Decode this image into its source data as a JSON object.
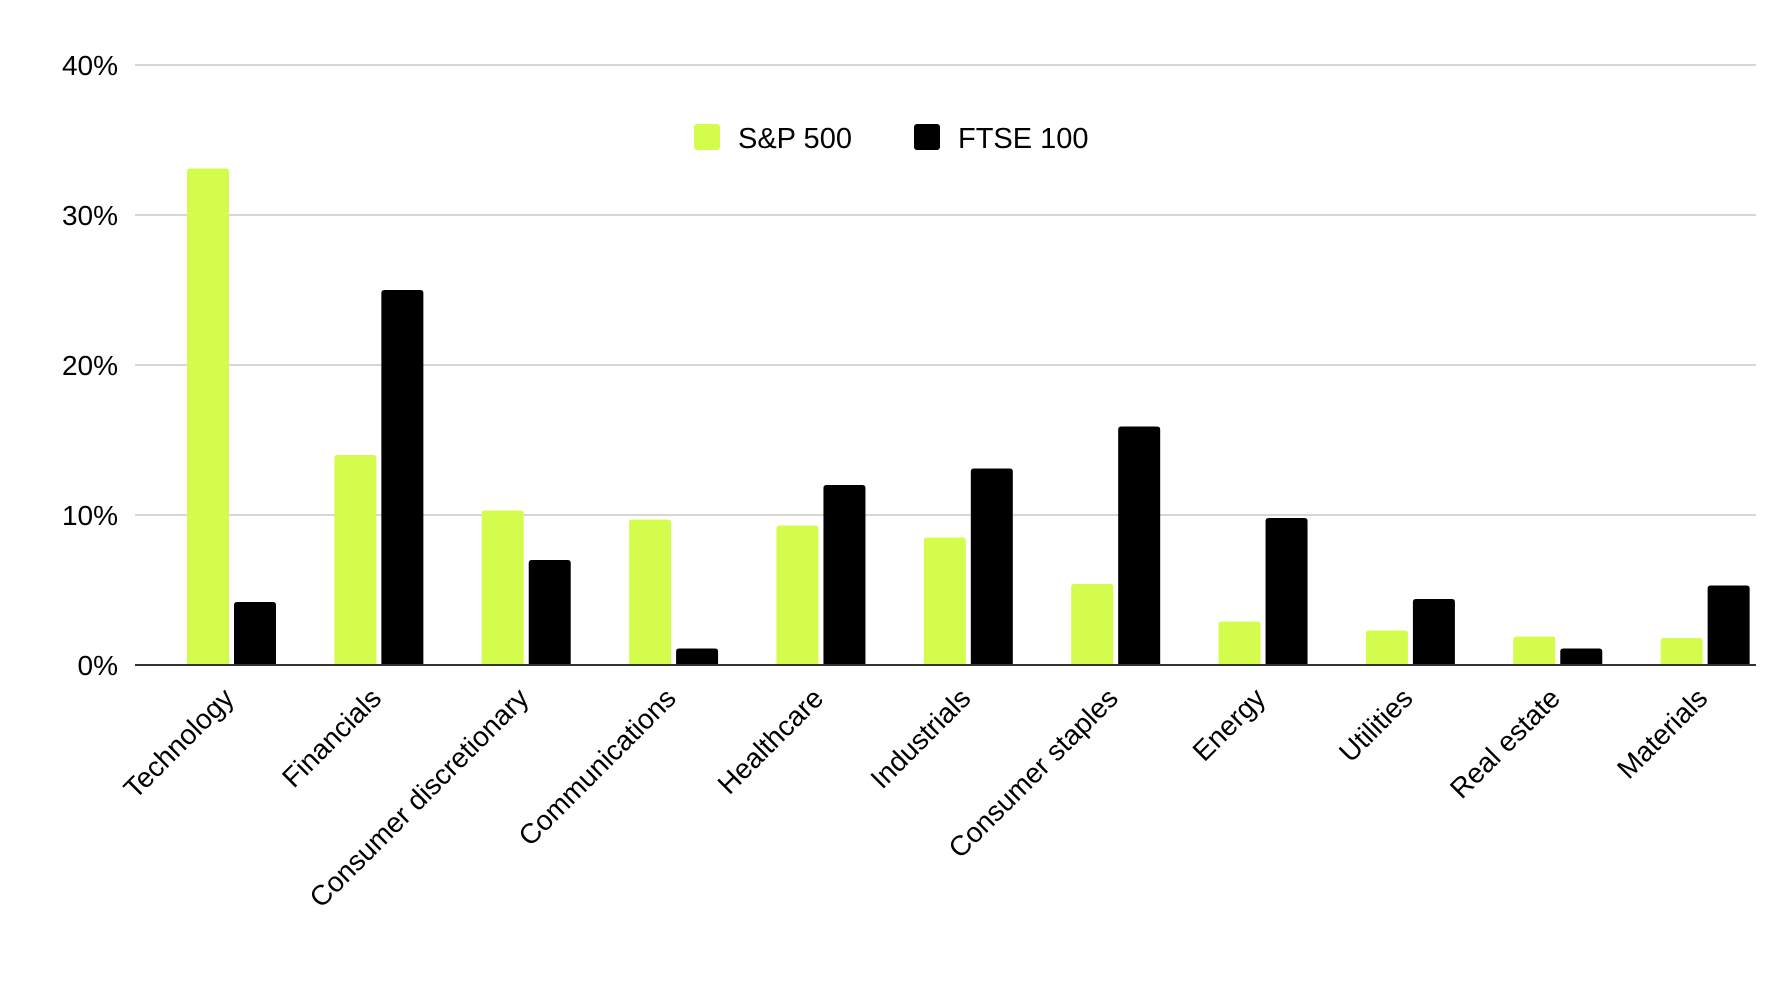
{
  "chart_data": {
    "type": "bar",
    "title": "",
    "xlabel": "",
    "ylabel": "",
    "ylim": [
      0,
      40
    ],
    "y_ticks": [
      {
        "value": 0,
        "label": "0%"
      },
      {
        "value": 10,
        "label": "10%"
      },
      {
        "value": 20,
        "label": "20%"
      },
      {
        "value": 30,
        "label": "30%"
      },
      {
        "value": 40,
        "label": "40%"
      }
    ],
    "grid": true,
    "legend": "top-center",
    "categories": [
      "Technology",
      "Financials",
      "Consumer discretionary",
      "Communications",
      "Healthcare",
      "Industrials",
      "Consumer staples",
      "Energy",
      "Utilities",
      "Real estate",
      "Materials"
    ],
    "series": [
      {
        "name": "S&P 500",
        "color": "#d4fc4c",
        "values": [
          33.1,
          14.0,
          10.3,
          9.7,
          9.3,
          8.5,
          5.4,
          2.9,
          2.3,
          1.9,
          1.8
        ]
      },
      {
        "name": "FTSE 100",
        "color": "#000000",
        "values": [
          4.2,
          25.0,
          7.0,
          1.1,
          12.0,
          13.1,
          15.9,
          9.8,
          4.4,
          1.1,
          5.3
        ]
      }
    ]
  }
}
